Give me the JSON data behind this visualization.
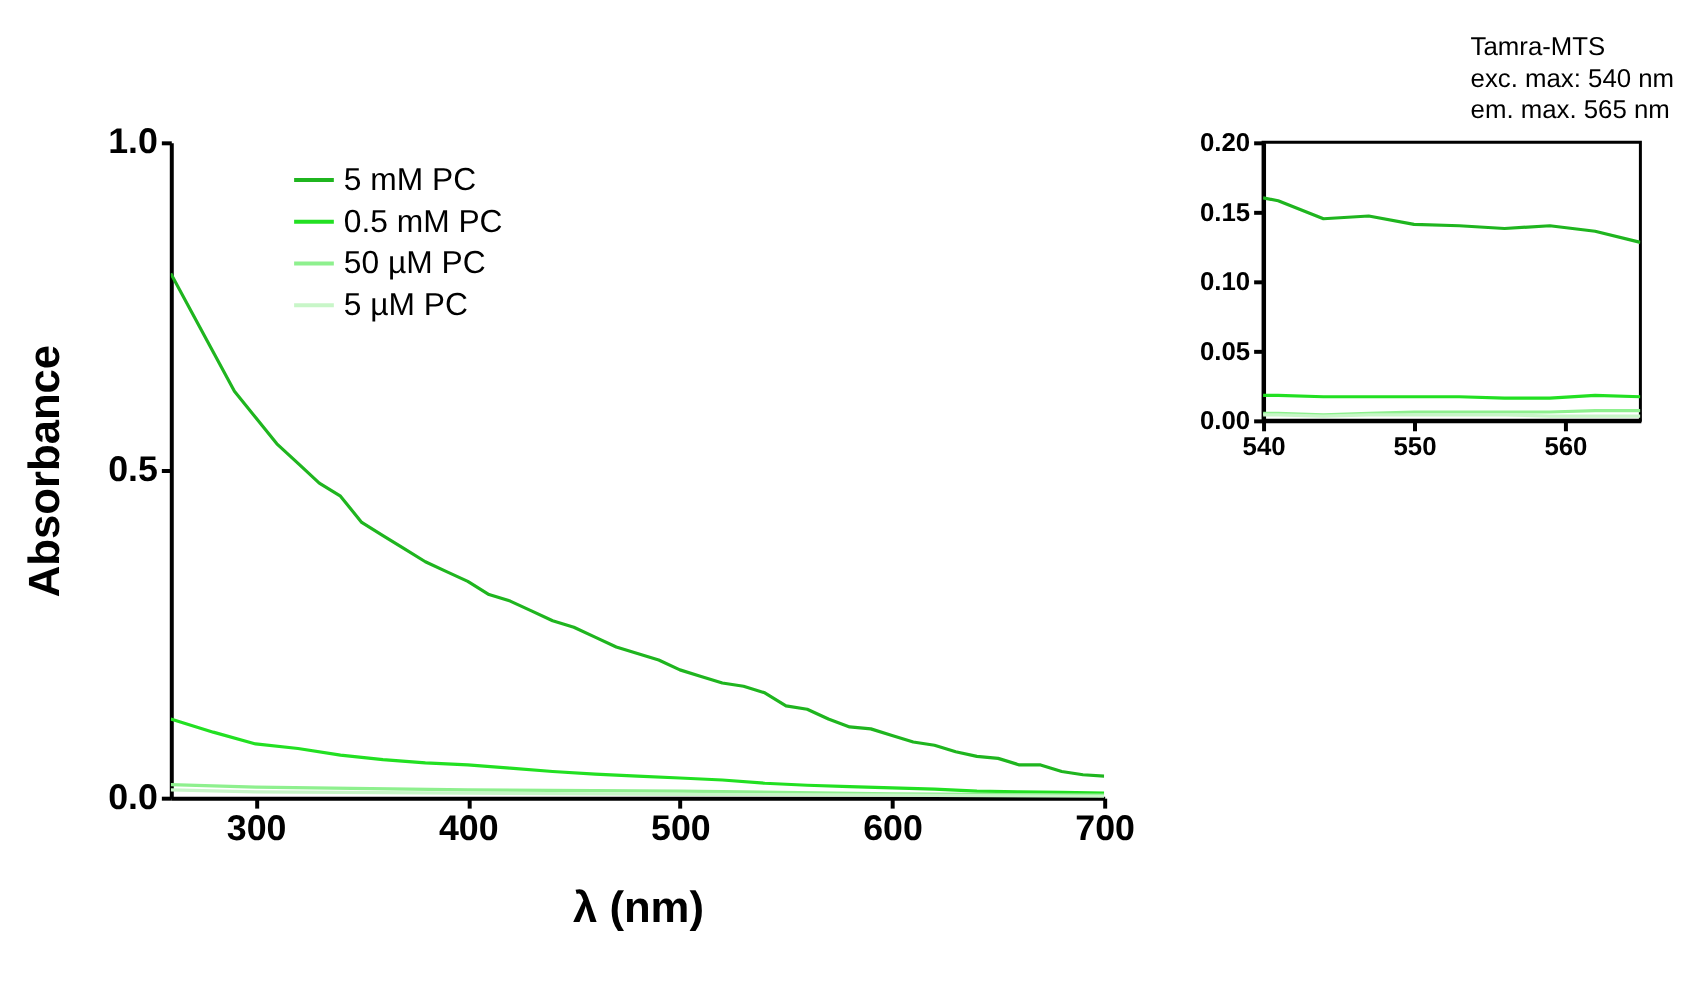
{
  "chart_data": [
    {
      "type": "line",
      "xlabel": "λ (nm)",
      "ylabel": "Absorbance",
      "xlim": [
        260,
        700
      ],
      "ylim": [
        0,
        1.0
      ],
      "xticks": [
        300,
        400,
        500,
        600,
        700
      ],
      "yticks": [
        {
          "value": 0,
          "label": "0.0"
        },
        0.5,
        {
          "value": 1,
          "label": "1.0"
        }
      ],
      "grid": false,
      "legend": "top left",
      "line_style": "solid",
      "marker": "none",
      "x": [
        260,
        270,
        280,
        290,
        300,
        310,
        320,
        330,
        340,
        350,
        360,
        370,
        380,
        390,
        400,
        410,
        420,
        430,
        440,
        450,
        460,
        470,
        480,
        490,
        500,
        510,
        520,
        530,
        540,
        550,
        560,
        570,
        580,
        590,
        600,
        610,
        620,
        630,
        640,
        650,
        660,
        670,
        680,
        690,
        700
      ],
      "series": [
        {
          "name": "5 mM PC",
          "color": "#1fb51f",
          "values": [
            0.8,
            0.74,
            0.68,
            0.62,
            0.58,
            0.54,
            0.51,
            0.48,
            0.46,
            0.42,
            0.4,
            0.38,
            0.36,
            0.345,
            0.33,
            0.31,
            0.3,
            0.285,
            0.27,
            0.26,
            0.245,
            0.23,
            0.22,
            0.21,
            0.195,
            0.185,
            0.175,
            0.17,
            0.16,
            0.14,
            0.135,
            0.12,
            0.108,
            0.105,
            0.095,
            0.085,
            0.08,
            0.07,
            0.063,
            0.06,
            0.05,
            0.05,
            0.04,
            0.035,
            0.033
          ]
        },
        {
          "name": "0.5 mM PC",
          "color": "#22e022",
          "x": [
            260,
            280,
            300,
            320,
            340,
            360,
            380,
            400,
            420,
            440,
            460,
            480,
            500,
            520,
            540,
            560,
            580,
            600,
            620,
            640,
            660,
            680,
            700
          ],
          "values": [
            0.12,
            0.1,
            0.082,
            0.075,
            0.065,
            0.058,
            0.053,
            0.05,
            0.045,
            0.04,
            0.036,
            0.033,
            0.03,
            0.027,
            0.022,
            0.019,
            0.017,
            0.015,
            0.013,
            0.01,
            0.009,
            0.008,
            0.007
          ]
        },
        {
          "name": "50 µM PC",
          "color": "#8ef08e",
          "x": [
            260,
            300,
            400,
            500,
            600,
            700
          ],
          "values": [
            0.02,
            0.016,
            0.012,
            0.01,
            0.006,
            0.004
          ]
        },
        {
          "name": "5 µM PC",
          "color": "#c8f6c8",
          "x": [
            260,
            300,
            400,
            500,
            600,
            700
          ],
          "values": [
            0.012,
            0.009,
            0.007,
            0.005,
            0.004,
            0.002
          ]
        }
      ]
    },
    {
      "type": "line",
      "xlim": [
        540,
        565
      ],
      "ylim": [
        0,
        0.2
      ],
      "xticks": [
        540,
        550,
        560
      ],
      "yticks": [
        {
          "value": 0,
          "label": "0.00"
        },
        0.05,
        {
          "value": 0.1,
          "label": "0.10"
        },
        0.15,
        {
          "value": 0.2,
          "label": "0.20"
        }
      ],
      "grid": false,
      "line_style": "solid",
      "marker": "none",
      "annotations": [
        "Tamra-MTS",
        "exc. max: 540 nm",
        "em. max. 565 nm"
      ],
      "x": [
        540,
        541,
        544,
        547,
        550,
        553,
        556,
        559,
        562,
        565
      ],
      "series": [
        {
          "color": "#1fb51f",
          "values": [
            0.16,
            0.158,
            0.145,
            0.147,
            0.141,
            0.14,
            0.138,
            0.14,
            0.136,
            0.128
          ]
        },
        {
          "color": "#22e022",
          "values": [
            0.018,
            0.018,
            0.017,
            0.017,
            0.017,
            0.017,
            0.016,
            0.016,
            0.018,
            0.017
          ]
        },
        {
          "color": "#8ef08e",
          "values": [
            0.005,
            0.005,
            0.004,
            0.005,
            0.006,
            0.006,
            0.006,
            0.006,
            0.007,
            0.007
          ]
        },
        {
          "color": "#c8f6c8",
          "values": [
            0.004,
            0.004,
            0.003,
            0.004,
            0.004,
            0.004,
            0.004,
            0.003,
            0.003,
            0.003
          ]
        }
      ]
    }
  ]
}
